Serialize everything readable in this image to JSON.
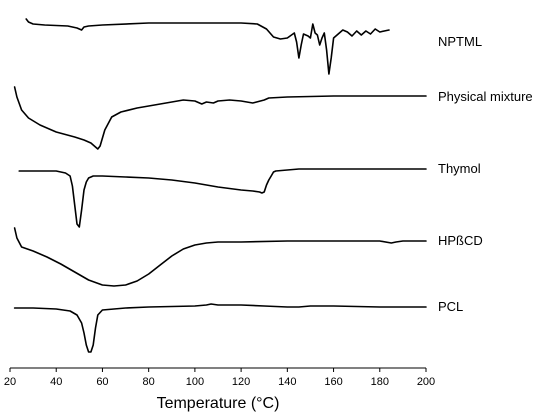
{
  "chart_data": {
    "type": "line",
    "title": "",
    "xlabel": "Temperature (°C)",
    "ylabel": "",
    "xlim": [
      20,
      200
    ],
    "xticks": [
      20,
      40,
      60,
      80,
      100,
      120,
      140,
      160,
      180,
      200
    ],
    "y_axis_shown": false,
    "grid": false,
    "legend": "labels at right end of each curve",
    "series": [
      {
        "name": "NPTML",
        "points": [
          [
            27,
            19
          ],
          [
            28,
            22
          ],
          [
            29,
            23
          ],
          [
            30,
            24
          ],
          [
            35,
            25
          ],
          [
            45,
            26
          ],
          [
            49,
            28
          ],
          [
            51,
            30
          ],
          [
            52,
            27
          ],
          [
            54,
            26
          ],
          [
            60,
            25
          ],
          [
            80,
            23
          ],
          [
            100,
            23
          ],
          [
            120,
            23
          ],
          [
            127,
            24
          ],
          [
            131,
            29
          ],
          [
            134,
            37
          ],
          [
            137,
            39
          ],
          [
            140,
            38
          ],
          [
            143,
            33
          ],
          [
            144,
            42
          ],
          [
            145,
            58
          ],
          [
            146,
            45
          ],
          [
            147,
            34
          ],
          [
            149,
            36
          ],
          [
            150,
            38
          ],
          [
            151,
            24
          ],
          [
            152,
            33
          ],
          [
            153,
            35
          ],
          [
            154,
            45
          ],
          [
            155,
            38
          ],
          [
            156,
            33
          ],
          [
            157,
            50
          ],
          [
            158,
            74
          ],
          [
            159,
            58
          ],
          [
            160,
            38
          ],
          [
            162,
            34
          ],
          [
            164,
            30
          ],
          [
            166,
            32
          ],
          [
            168,
            36
          ],
          [
            170,
            31
          ],
          [
            172,
            35
          ],
          [
            174,
            31
          ],
          [
            176,
            34
          ],
          [
            178,
            29
          ],
          [
            180,
            32
          ],
          [
            184,
            30
          ]
        ]
      },
      {
        "name": "Physical mixture",
        "points": [
          [
            22,
            87
          ],
          [
            23,
            97
          ],
          [
            25,
            110
          ],
          [
            28,
            118
          ],
          [
            33,
            125
          ],
          [
            40,
            132
          ],
          [
            48,
            137
          ],
          [
            52,
            140
          ],
          [
            55,
            143
          ],
          [
            57,
            147
          ],
          [
            58,
            149
          ],
          [
            59,
            146
          ],
          [
            61,
            130
          ],
          [
            64,
            117
          ],
          [
            68,
            112
          ],
          [
            75,
            108
          ],
          [
            80,
            106
          ],
          [
            90,
            102
          ],
          [
            95,
            100
          ],
          [
            100,
            101
          ],
          [
            103,
            104
          ],
          [
            105,
            102
          ],
          [
            108,
            103
          ],
          [
            110,
            101
          ],
          [
            115,
            100
          ],
          [
            120,
            101
          ],
          [
            125,
            103
          ],
          [
            130,
            100
          ],
          [
            132,
            98
          ],
          [
            140,
            97
          ],
          [
            160,
            96
          ],
          [
            180,
            96
          ],
          [
            200,
            96
          ]
        ]
      },
      {
        "name": "Thymol",
        "points": [
          [
            24,
            171
          ],
          [
            30,
            171
          ],
          [
            40,
            171
          ],
          [
            44,
            173
          ],
          [
            46,
            176
          ],
          [
            47,
            186
          ],
          [
            48,
            205
          ],
          [
            49,
            224
          ],
          [
            50,
            227
          ],
          [
            51,
            210
          ],
          [
            52,
            190
          ],
          [
            53,
            182
          ],
          [
            54,
            178
          ],
          [
            56,
            176
          ],
          [
            60,
            176
          ],
          [
            70,
            177
          ],
          [
            80,
            178
          ],
          [
            90,
            180
          ],
          [
            100,
            183
          ],
          [
            110,
            187
          ],
          [
            120,
            190
          ],
          [
            125,
            191
          ],
          [
            128,
            192
          ],
          [
            129,
            193
          ],
          [
            130,
            192
          ],
          [
            131,
            185
          ],
          [
            132,
            180
          ],
          [
            133,
            176
          ],
          [
            134,
            172
          ],
          [
            135,
            171
          ],
          [
            140,
            170
          ],
          [
            145,
            169
          ],
          [
            150,
            169
          ],
          [
            160,
            169
          ],
          [
            180,
            169
          ],
          [
            200,
            169
          ]
        ]
      },
      {
        "name": "HPßCD",
        "points": [
          [
            22,
            228
          ],
          [
            23,
            238
          ],
          [
            25,
            247
          ],
          [
            30,
            251
          ],
          [
            36,
            257
          ],
          [
            42,
            264
          ],
          [
            48,
            272
          ],
          [
            54,
            280
          ],
          [
            60,
            285
          ],
          [
            65,
            286
          ],
          [
            70,
            285
          ],
          [
            75,
            281
          ],
          [
            80,
            274
          ],
          [
            85,
            265
          ],
          [
            90,
            256
          ],
          [
            95,
            249
          ],
          [
            100,
            245
          ],
          [
            105,
            243
          ],
          [
            110,
            242
          ],
          [
            120,
            242
          ],
          [
            140,
            241
          ],
          [
            160,
            241
          ],
          [
            180,
            241
          ],
          [
            185,
            243
          ],
          [
            187,
            242
          ],
          [
            190,
            241
          ],
          [
            195,
            241
          ],
          [
            200,
            241
          ]
        ]
      },
      {
        "name": "PCL",
        "points": [
          [
            22,
            308
          ],
          [
            30,
            308
          ],
          [
            40,
            309
          ],
          [
            46,
            311
          ],
          [
            49,
            315
          ],
          [
            51,
            323
          ],
          [
            52,
            333
          ],
          [
            53,
            345
          ],
          [
            54,
            352
          ],
          [
            55,
            352
          ],
          [
            56,
            345
          ],
          [
            57,
            328
          ],
          [
            58,
            315
          ],
          [
            60,
            310
          ],
          [
            70,
            308
          ],
          [
            80,
            307
          ],
          [
            100,
            306
          ],
          [
            105,
            305
          ],
          [
            107,
            304
          ],
          [
            110,
            305
          ],
          [
            120,
            305
          ],
          [
            130,
            306
          ],
          [
            140,
            307
          ],
          [
            145,
            307
          ],
          [
            150,
            306
          ],
          [
            160,
            306
          ],
          [
            180,
            307
          ],
          [
            200,
            307
          ]
        ]
      }
    ]
  }
}
